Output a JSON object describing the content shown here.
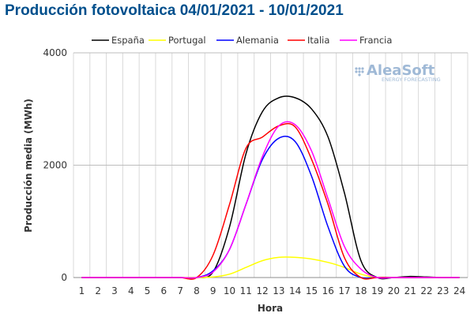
{
  "title": "Producción fotovoltaica 04/01/2021 - 10/01/2021",
  "logo": {
    "name": "AleaSoft",
    "tagline": "ENERGY FORECASTING",
    "color": "#9fb9d6"
  },
  "colors": {
    "title": "#004f8c",
    "grid": "#c8c8c8"
  },
  "chart_data": {
    "type": "line",
    "xlabel": "Hora",
    "ylabel": "Producción media (MWh)",
    "x": [
      1,
      2,
      3,
      4,
      5,
      6,
      7,
      8,
      9,
      10,
      11,
      12,
      13,
      14,
      15,
      16,
      17,
      18,
      19,
      20,
      21,
      22,
      23,
      24
    ],
    "yticks": [
      0,
      2000,
      4000
    ],
    "ylim": [
      0,
      4000
    ],
    "grid": true,
    "legend_position": "top",
    "series": [
      {
        "name": "España",
        "color": "#000000",
        "values": [
          0,
          0,
          0,
          0,
          0,
          0,
          0,
          0,
          100,
          900,
          2200,
          2950,
          3200,
          3200,
          3000,
          2500,
          1500,
          300,
          0,
          0,
          20,
          10,
          0,
          0
        ]
      },
      {
        "name": "Portugal",
        "color": "#ffff00",
        "values": [
          0,
          0,
          0,
          0,
          0,
          0,
          0,
          0,
          10,
          60,
          180,
          300,
          360,
          360,
          330,
          270,
          180,
          60,
          0,
          0,
          0,
          0,
          0,
          0
        ]
      },
      {
        "name": "Alemania",
        "color": "#0000ff",
        "values": [
          0,
          0,
          0,
          0,
          0,
          0,
          0,
          0,
          120,
          500,
          1300,
          2100,
          2480,
          2420,
          1800,
          900,
          200,
          0,
          0,
          0,
          0,
          0,
          0,
          0
        ]
      },
      {
        "name": "Italia",
        "color": "#ff0000",
        "values": [
          0,
          0,
          0,
          0,
          0,
          0,
          0,
          0,
          400,
          1300,
          2300,
          2500,
          2700,
          2680,
          2100,
          1300,
          350,
          0,
          0,
          0,
          0,
          0,
          0,
          0
        ]
      },
      {
        "name": "Francia",
        "color": "#ff00ff",
        "values": [
          0,
          0,
          0,
          0,
          0,
          0,
          0,
          0,
          100,
          500,
          1300,
          2150,
          2700,
          2720,
          2250,
          1400,
          550,
          150,
          0,
          0,
          0,
          0,
          0,
          0
        ]
      }
    ]
  }
}
